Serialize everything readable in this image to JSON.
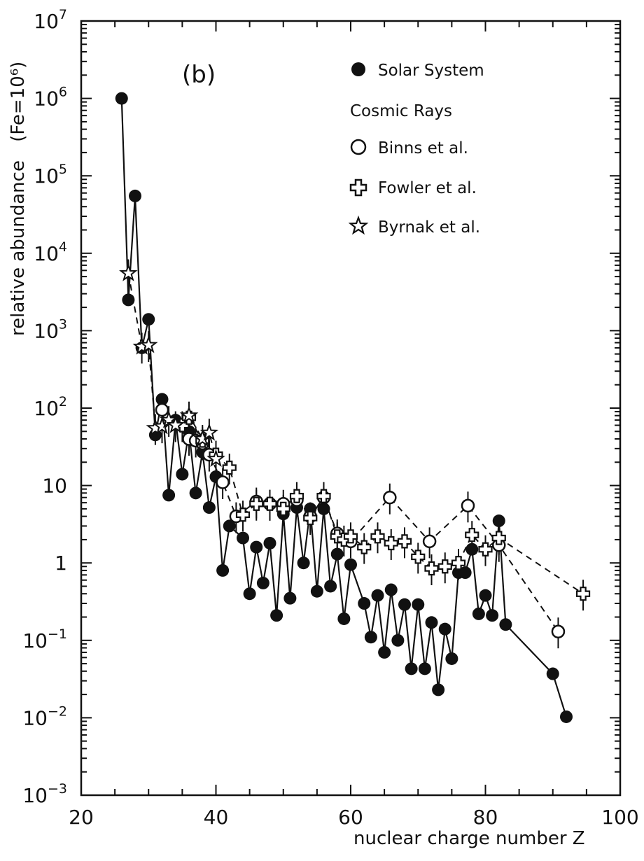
{
  "chart_data": {
    "type": "scatter",
    "title": "",
    "panel_label": "(b)",
    "xlabel": "nuclear charge number Z",
    "ylabel": "relative abundance",
    "ylabel_unit": "(Fe=10⁶)",
    "xlim": [
      20,
      100
    ],
    "ylim": [
      0.001,
      10000000
    ],
    "yscale": "log",
    "grid": false,
    "x_ticks": [
      "20",
      "40",
      "60",
      "80",
      "100"
    ],
    "y_tick_labels": [
      {
        "value": 0.001,
        "base": "10",
        "exp": "−3"
      },
      {
        "value": 0.01,
        "base": "10",
        "exp": "−2"
      },
      {
        "value": 0.1,
        "base": "10",
        "exp": "−1"
      },
      {
        "value": 1,
        "base": "1",
        "exp": ""
      },
      {
        "value": 10,
        "base": "10",
        "exp": ""
      },
      {
        "value": 100,
        "base": "10",
        "exp": "2"
      },
      {
        "value": 1000,
        "base": "10",
        "exp": "3"
      },
      {
        "value": 10000,
        "base": "10",
        "exp": "4"
      },
      {
        "value": 100000,
        "base": "10",
        "exp": "5"
      },
      {
        "value": 1000000,
        "base": "10",
        "exp": "6"
      },
      {
        "value": 10000000,
        "base": "10",
        "exp": "7"
      }
    ],
    "legend": {
      "placement": "top-right",
      "group_heading": "Cosmic Rays",
      "entries": [
        {
          "label": "Solar System",
          "marker": "filled-circle"
        },
        {
          "label": "Binns et al.",
          "marker": "open-circle"
        },
        {
          "label": "Fowler et al.",
          "marker": "open-cross"
        },
        {
          "label": "Byrnak et al.",
          "marker": "open-star"
        }
      ]
    },
    "series": [
      {
        "name": "Solar System",
        "marker": "filled-circle",
        "line": "solid",
        "points": [
          [
            26,
            1000000
          ],
          [
            27,
            2500
          ],
          [
            28,
            55000
          ],
          [
            29,
            600
          ],
          [
            30,
            1400
          ],
          [
            31,
            45
          ],
          [
            32,
            130
          ],
          [
            33,
            7.5
          ],
          [
            34,
            70
          ],
          [
            35,
            14
          ],
          [
            36,
            50
          ],
          [
            37,
            8
          ],
          [
            38,
            27
          ],
          [
            39,
            5.2
          ],
          [
            40,
            13
          ],
          [
            41,
            0.8
          ],
          [
            42,
            3
          ],
          [
            44,
            2.1
          ],
          [
            45,
            0.4
          ],
          [
            46,
            1.6
          ],
          [
            47,
            0.55
          ],
          [
            48,
            1.8
          ],
          [
            49,
            0.21
          ],
          [
            50,
            4.3
          ],
          [
            51,
            0.35
          ],
          [
            52,
            5.2
          ],
          [
            53,
            1.0
          ],
          [
            54,
            5.0
          ],
          [
            55,
            0.43
          ],
          [
            56,
            5.0
          ],
          [
            57,
            0.5
          ],
          [
            58,
            1.3
          ],
          [
            59,
            0.19
          ],
          [
            60,
            0.95
          ],
          [
            62,
            0.3
          ],
          [
            63,
            0.11
          ],
          [
            64,
            0.38
          ],
          [
            65,
            0.07
          ],
          [
            66,
            0.45
          ],
          [
            67,
            0.1
          ],
          [
            68,
            0.29
          ],
          [
            69,
            0.043
          ],
          [
            70,
            0.29
          ],
          [
            71,
            0.043
          ],
          [
            72,
            0.17
          ],
          [
            73,
            0.023
          ],
          [
            74,
            0.14
          ],
          [
            75,
            0.058
          ],
          [
            76,
            0.75
          ],
          [
            77,
            0.75
          ],
          [
            78,
            1.5
          ],
          [
            79,
            0.22
          ],
          [
            80,
            0.38
          ],
          [
            81,
            0.21
          ],
          [
            82,
            3.5
          ],
          [
            83,
            0.16
          ],
          [
            90,
            0.037
          ],
          [
            92,
            0.0103
          ]
        ]
      },
      {
        "name": "Binns et al.",
        "marker": "open-circle",
        "line": "dashed",
        "points": [
          [
            32,
            95
          ],
          [
            36,
            40
          ],
          [
            37,
            38
          ],
          [
            38,
            35
          ],
          [
            39,
            25
          ],
          [
            41,
            11
          ],
          [
            43,
            4
          ],
          [
            46,
            6.2
          ],
          [
            48,
            5.8
          ],
          [
            50,
            5.8
          ],
          [
            52,
            6.5
          ],
          [
            54,
            4
          ],
          [
            56,
            7
          ],
          [
            58,
            2.4
          ],
          [
            60,
            1.9
          ],
          [
            65.8,
            7.0
          ],
          [
            71.7,
            1.9
          ],
          [
            77.4,
            5.5
          ],
          [
            82,
            1.7
          ],
          [
            90.8,
            0.13
          ]
        ]
      },
      {
        "name": "Fowler et al.",
        "marker": "open-cross",
        "line": "dashed",
        "points": [
          [
            35,
            60
          ],
          [
            36,
            75
          ],
          [
            38,
            38
          ],
          [
            40,
            25
          ],
          [
            42,
            17
          ],
          [
            44,
            4.2
          ],
          [
            46,
            5.8
          ],
          [
            48,
            5.8
          ],
          [
            50,
            5.0
          ],
          [
            52,
            7.3
          ],
          [
            54,
            3.8
          ],
          [
            56,
            7.3
          ],
          [
            58,
            2.2
          ],
          [
            59,
            2.0
          ],
          [
            60,
            2.2
          ],
          [
            62,
            1.6
          ],
          [
            64,
            2.2
          ],
          [
            66,
            1.8
          ],
          [
            68,
            1.9
          ],
          [
            70,
            1.2
          ],
          [
            72,
            0.85
          ],
          [
            74,
            0.9
          ],
          [
            76,
            1.0
          ],
          [
            78,
            2.3
          ],
          [
            80,
            1.5
          ],
          [
            82,
            2.1
          ],
          [
            94.5,
            0.4
          ]
        ]
      },
      {
        "name": "Byrnak et al.",
        "marker": "open-star",
        "line": "dashed",
        "points": [
          [
            27,
            5500
          ],
          [
            29,
            620
          ],
          [
            30,
            650
          ],
          [
            31,
            55
          ],
          [
            32,
            58
          ],
          [
            33,
            70
          ],
          [
            34,
            60
          ],
          [
            36,
            80
          ],
          [
            38,
            40
          ],
          [
            39,
            48
          ],
          [
            40,
            22
          ]
        ]
      }
    ]
  }
}
